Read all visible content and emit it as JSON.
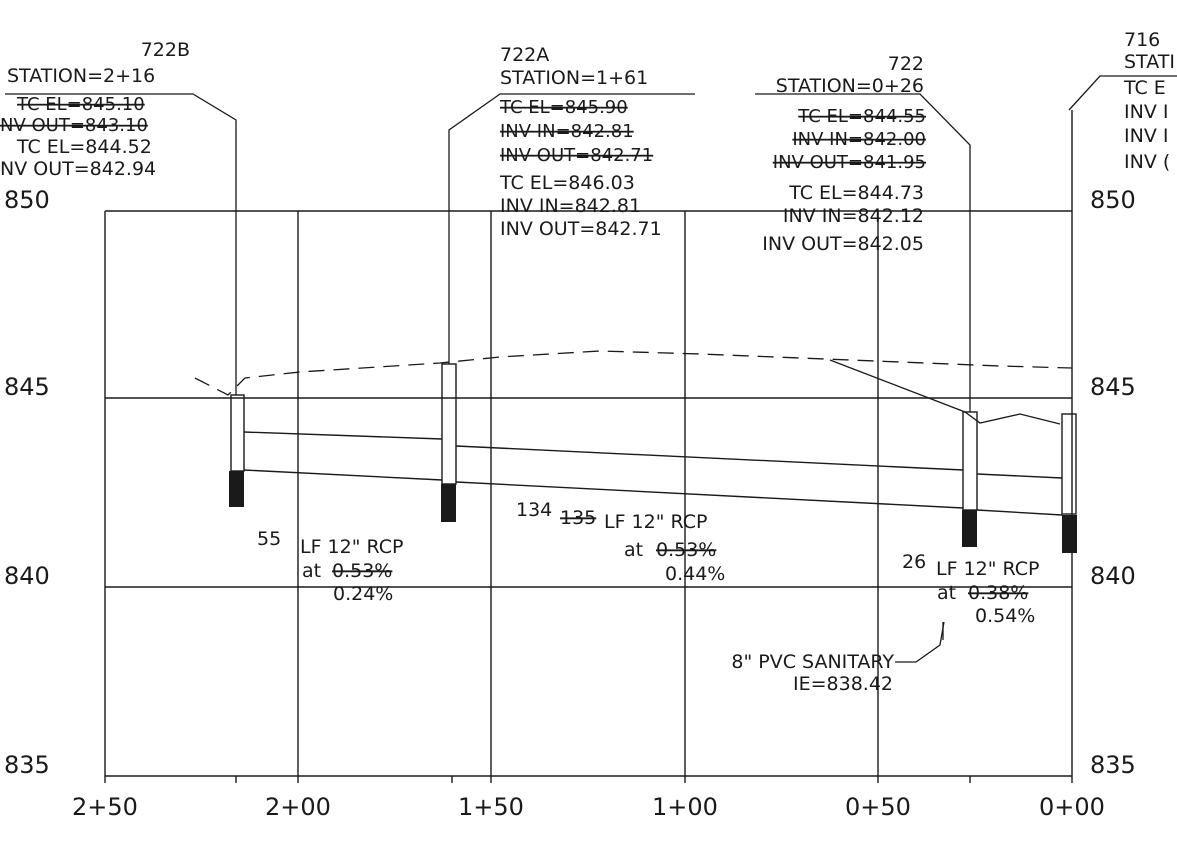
{
  "y_axis": {
    "left_labels": [
      "850",
      "845",
      "840",
      "835"
    ],
    "right_labels": [
      "850",
      "845",
      "840",
      "835"
    ],
    "values": [
      850,
      845,
      840,
      835
    ]
  },
  "x_axis": {
    "labels": [
      "2+50",
      "2+00",
      "1+50",
      "1+00",
      "0+50",
      "0+00"
    ]
  },
  "structures": {
    "s722b": {
      "name": "722B",
      "station": "STATION=2+16",
      "old": [
        "TC EL=845.10",
        "NV OUT=843.10"
      ],
      "new": [
        "TC EL=844.52",
        "NV OUT=842.94"
      ]
    },
    "s722a": {
      "name": "722A",
      "station": "STATION=1+61",
      "old": [
        "TC EL=845.90",
        "INV IN=842.81",
        "INV OUT=842.71"
      ],
      "new": [
        "TC EL=846.03",
        "INV IN=842.81",
        "INV OUT=842.71"
      ]
    },
    "s722": {
      "name": "722",
      "station": "STATION=0+26",
      "old": [
        "TC EL=844.55",
        "INV IN=842.00",
        "INV OUT=841.95"
      ],
      "new": [
        "TC EL=844.73",
        "INV IN=842.12",
        "INV OUT=842.05"
      ]
    },
    "s716": {
      "name": "716",
      "station": "STATI",
      "lines": [
        "TC E",
        "INV I",
        "INV I",
        "INV ("
      ]
    }
  },
  "pipes": {
    "p1": {
      "length": "55",
      "desc": "LF 12\" RCP",
      "at": "at",
      "old_slope": "0.53%",
      "new_slope": "0.24%"
    },
    "p2": {
      "new_length": "134",
      "old_length": "135",
      "desc": "LF 12\" RCP",
      "at": "at",
      "old_slope": "0.53%",
      "new_slope": "0.44%"
    },
    "p3": {
      "length": "26",
      "desc": "LF 12\" RCP",
      "at": "at",
      "old_slope": "0.38%",
      "new_slope": "0.54%"
    }
  },
  "sanitary": {
    "label": "8\" PVC SANITARY",
    "ie": "IE=838.42"
  },
  "colors": {
    "ink": "#1a1a1a",
    "paper": "#ffffff"
  }
}
